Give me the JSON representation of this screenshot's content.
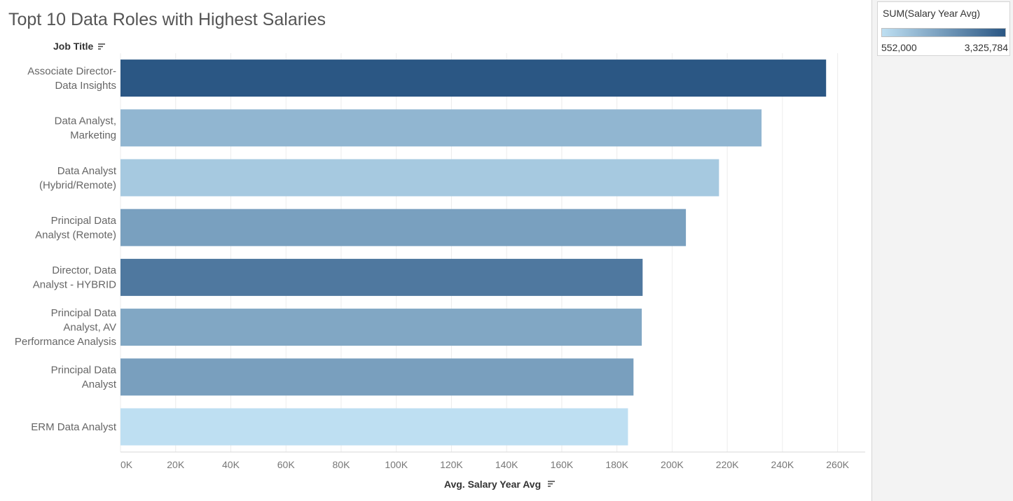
{
  "title": "Topt 10 Data Roles with Highest Salaries",
  "legend": {
    "title": "SUM(Salary Year Avg)",
    "min_label": "552,000",
    "max_label": "3,325,784",
    "min": 552000,
    "max": 3325784,
    "color_low": "#bedff2",
    "color_high": "#2b5784"
  },
  "colors": {
    "gridline": "#ececec",
    "axis_line": "#d9d9d9",
    "side_panel": "#f3f3f3"
  },
  "chart_data": {
    "type": "bar",
    "orientation": "horizontal",
    "row_header": "Job Title",
    "xlabel": "Avg. Salary Year Avg",
    "xlim": [
      0,
      270000
    ],
    "xticks": [
      0,
      20000,
      40000,
      60000,
      80000,
      100000,
      120000,
      140000,
      160000,
      180000,
      200000,
      220000,
      240000,
      260000
    ],
    "xtick_labels": [
      "0K",
      "20K",
      "40K",
      "60K",
      "80K",
      "100K",
      "120K",
      "140K",
      "160K",
      "180K",
      "200K",
      "220K",
      "240K",
      "260K"
    ],
    "grid": true,
    "categories": [
      [
        "Associate Director-",
        "Data Insights"
      ],
      [
        "Data Analyst,",
        "Marketing"
      ],
      [
        "Data Analyst",
        "(Hybrid/Remote)"
      ],
      [
        "Principal Data",
        "Analyst (Remote)"
      ],
      [
        "Director, Data",
        "Analyst - HYBRID"
      ],
      [
        "Principal Data",
        "Analyst, AV",
        "Performance Analysis"
      ],
      [
        "Principal Data",
        "Analyst"
      ],
      [
        "ERM Data Analyst"
      ]
    ],
    "values": [
      255830,
      232423,
      217000,
      205000,
      189309,
      189000,
      186000,
      184000
    ],
    "color_values": [
      3325784,
      1394538,
      1000000,
      1845000,
      2650000,
      1700000,
      1860000,
      552000
    ]
  }
}
